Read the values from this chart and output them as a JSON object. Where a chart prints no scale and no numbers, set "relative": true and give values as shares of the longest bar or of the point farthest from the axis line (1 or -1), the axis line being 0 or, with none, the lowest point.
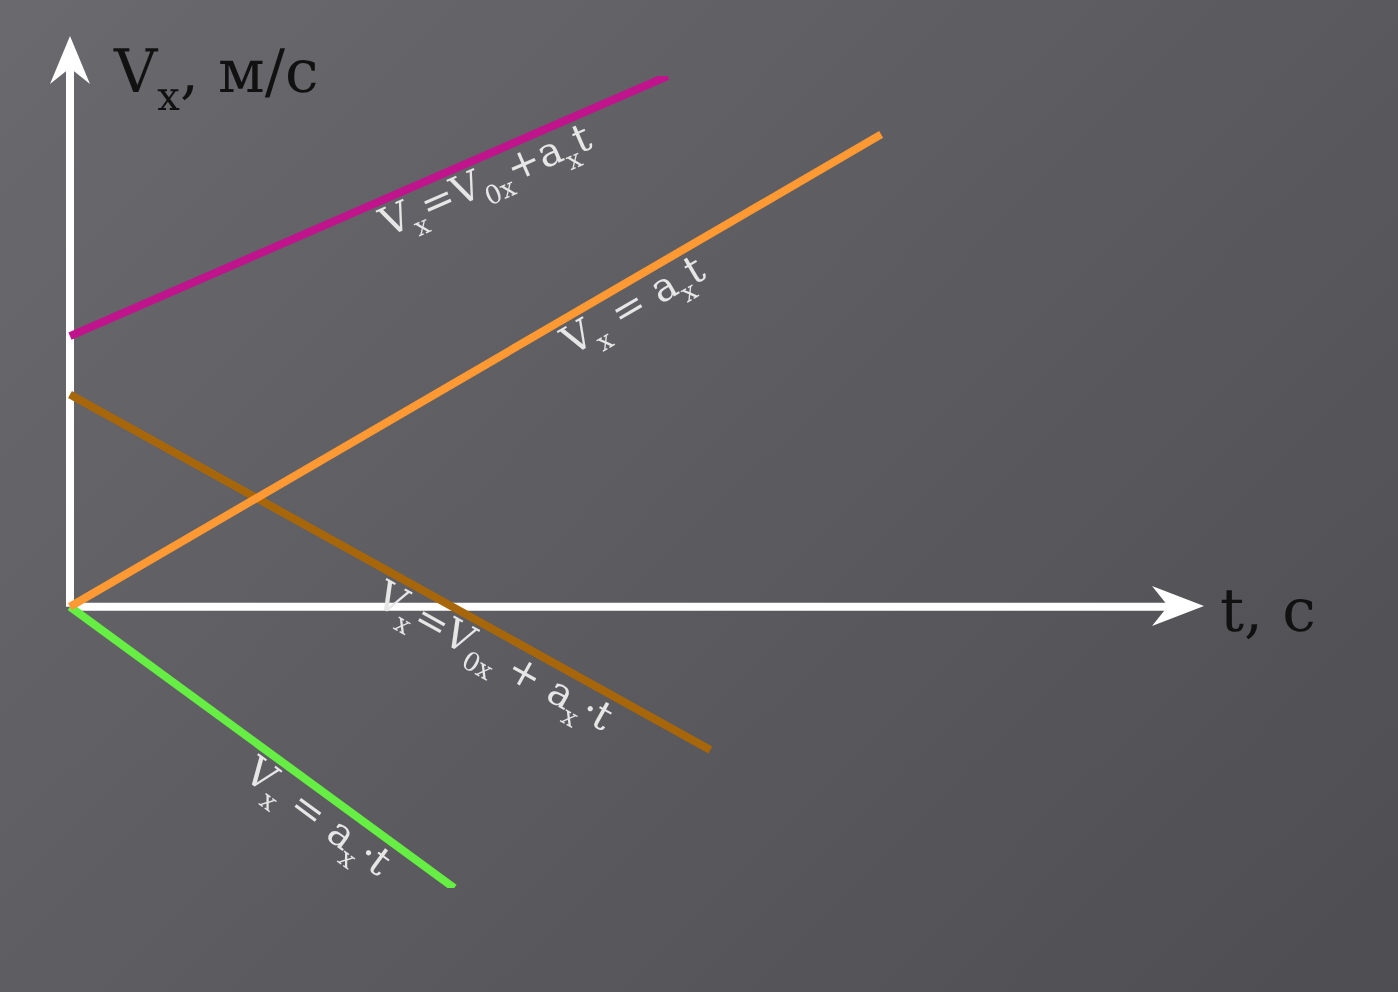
{
  "chart_data": {
    "type": "line",
    "relative": true,
    "xlabel": "t, с",
    "ylabel": "V$_{x}$, м/с",
    "legend": false,
    "marker": "none",
    "line_style": "solid",
    "categories": [
      null,
      null,
      null,
      null,
      null,
      null,
      null,
      null,
      null,
      null,
      null,
      null,
      null,
      null,
      null,
      null,
      null,
      null,
      null,
      null,
      null,
      null,
      null,
      null,
      null,
      null,
      null
    ],
    "series": [
      {
        "name": "V$_{x}$=V$_{0x}$+a$_{x}$t",
        "color": "#c0148c",
        "values": [
          0.51,
          null,
          null,
          null,
          null,
          null,
          null,
          null,
          null,
          null,
          null,
          null,
          null,
          null,
          1,
          null,
          null,
          null,
          null,
          null,
          null,
          null,
          null,
          null,
          null,
          null,
          null
        ]
      },
      {
        "name": "V$_{x}$ = a$_{x}$t",
        "color": "#ff9933",
        "values": [
          0,
          null,
          null,
          null,
          null,
          null,
          null,
          null,
          null,
          null,
          null,
          null,
          null,
          null,
          null,
          null,
          null,
          null,
          null,
          0.89,
          null,
          null,
          null,
          null,
          null,
          null,
          null
        ]
      },
      {
        "name": "V$_{x}$=V$_{0x}$ + a$_{x}$·t",
        "color": "#a8660a",
        "values": [
          0.4,
          null,
          null,
          null,
          null,
          null,
          null,
          null,
          null,
          null,
          null,
          null,
          null,
          null,
          null,
          -0.27,
          null,
          null,
          null,
          null,
          null,
          null,
          null,
          null,
          null,
          null,
          null
        ]
      },
      {
        "name": "V$_{x}$ = a$_{x}$·t",
        "color": "#66ee44",
        "values": [
          0,
          null,
          null,
          null,
          null,
          null,
          null,
          null,
          null,
          -0.53,
          null,
          null,
          null,
          null,
          null,
          null,
          null,
          null,
          null,
          null,
          null,
          null,
          null,
          null,
          null,
          null,
          null
        ]
      }
    ]
  }
}
